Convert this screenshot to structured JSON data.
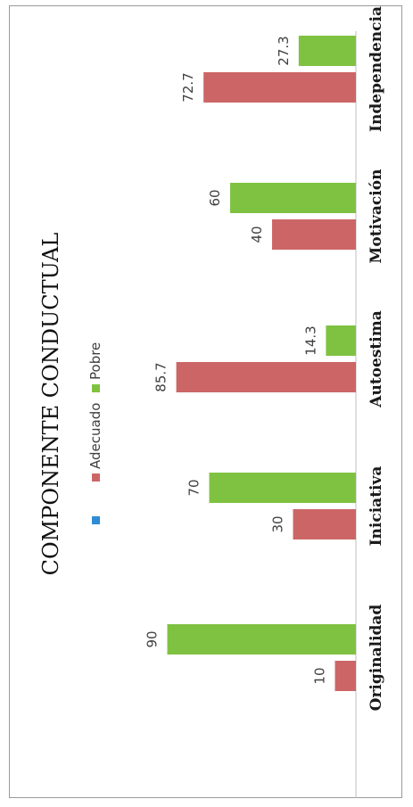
{
  "chart_data": {
    "type": "bar",
    "title": "COMPONENTE CONDUCTUAL",
    "categories": [
      "Originalidad",
      "Iniciativa",
      "Autoestima",
      "Motivación",
      "Independencia"
    ],
    "series": [
      {
        "name": "Adecuado",
        "color": "#cc6666",
        "values": [
          10,
          30,
          85.7,
          40,
          72.7
        ]
      },
      {
        "name": "Pobre",
        "color": "#7fc241",
        "values": [
          90,
          70,
          14.3,
          60,
          27.3
        ]
      }
    ],
    "legend_extra_marker_color": "#2e8bd4",
    "ylim": [
      0,
      100
    ],
    "legend_placement": "top",
    "grid": false,
    "orientation": "rotated-90"
  }
}
